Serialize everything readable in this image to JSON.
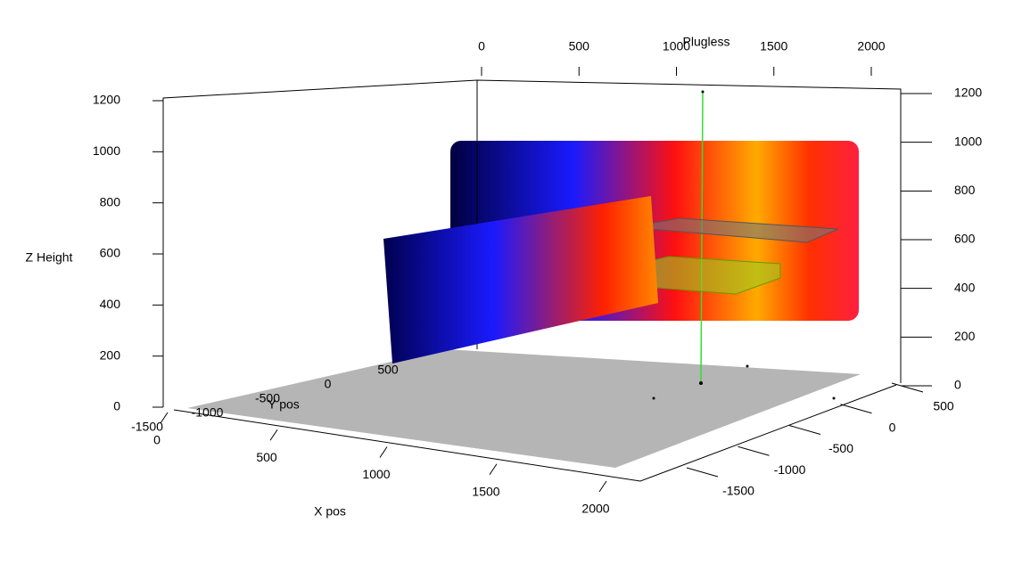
{
  "chart_data": {
    "type": "scatter3d",
    "title": "Plugless",
    "xlabel": "X pos",
    "ylabel": "Y pos",
    "zlabel": "Z Height",
    "xlim": [
      0,
      2000
    ],
    "xticks": [
      0,
      500,
      1000,
      1500,
      2000
    ],
    "ylim": [
      -1500,
      500
    ],
    "yticks": [
      -1500,
      -1000,
      -500,
      0,
      500
    ],
    "zlim": [
      0,
      1200
    ],
    "zticks": [
      0,
      200,
      400,
      600,
      800,
      1000,
      1200
    ]
  }
}
